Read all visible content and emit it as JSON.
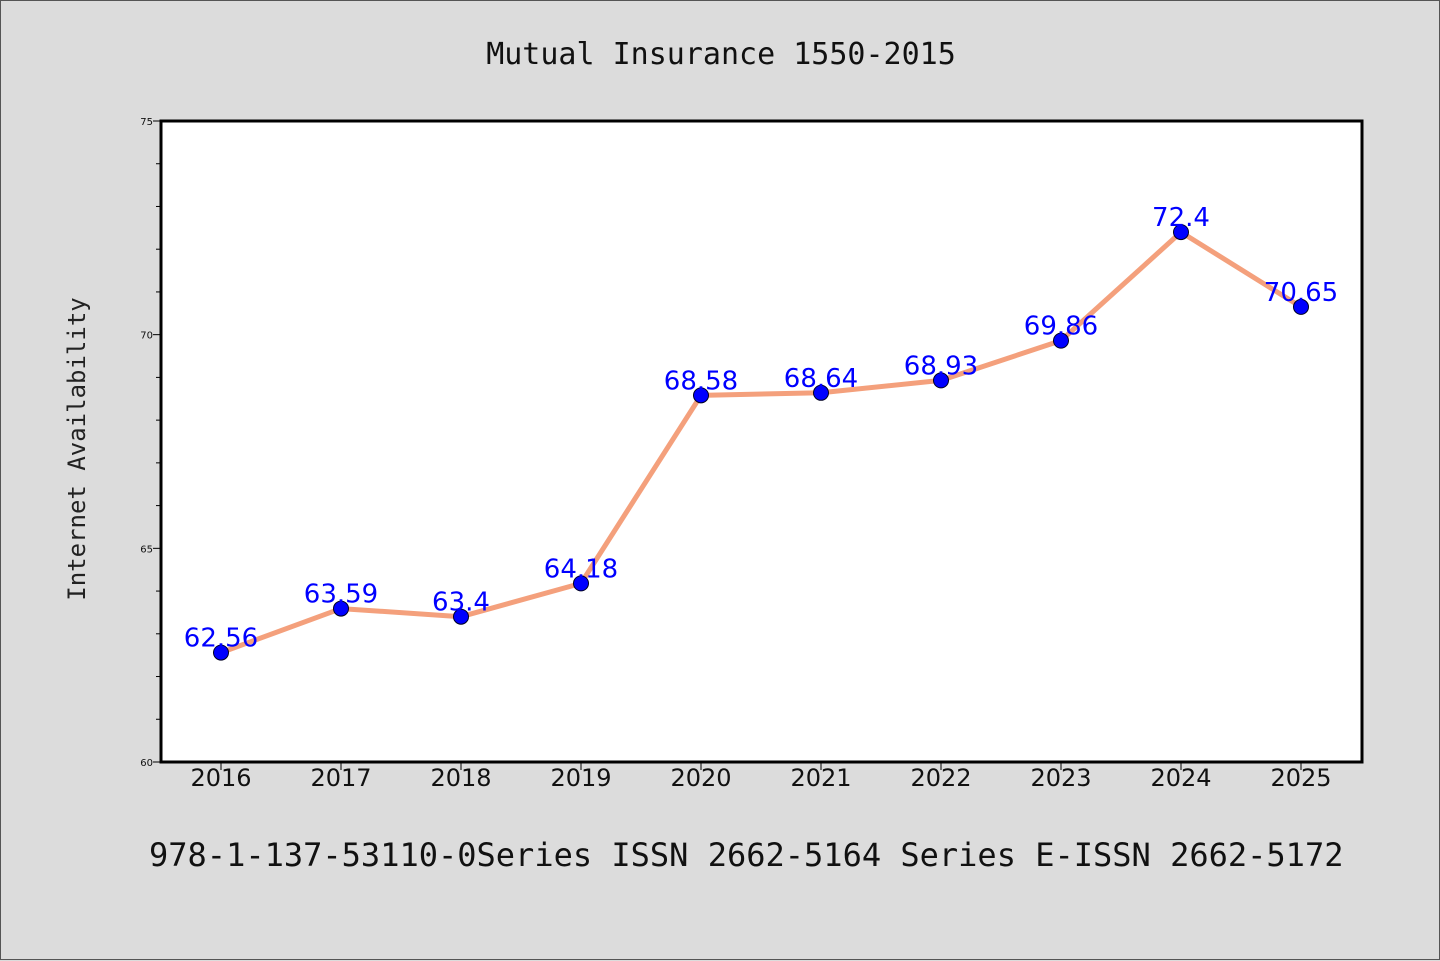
{
  "chart_data": {
    "type": "line",
    "title": "Mutual Insurance 1550-2015",
    "xlabel": "",
    "ylabel": "Internet Availability",
    "footer": "978-1-137-53110-0Series ISSN 2662-5164 Series E-ISSN 2662-5172",
    "x": [
      "2016",
      "2017",
      "2018",
      "2019",
      "2020",
      "2021",
      "2022",
      "2023",
      "2024",
      "2025"
    ],
    "series": [
      {
        "values": [
          62.56,
          63.59,
          63.4,
          64.18,
          68.58,
          68.64,
          68.93,
          69.86,
          72.4,
          70.65
        ],
        "data_labels": [
          "62.56",
          "63.59",
          "63.4",
          "64.18",
          "68.58",
          "68.64",
          "68.93",
          "69.86",
          "72.4",
          "70.65"
        ],
        "line_color": "#f4a07c",
        "marker_color": "#0000ff",
        "label_color": "#0000ff"
      }
    ],
    "ylim": [
      60,
      75
    ],
    "yticks": [
      "60",
      "65",
      "70",
      "75"
    ],
    "grid": false,
    "legend": "none"
  },
  "colors": {
    "background": "#dcdcdc",
    "plot_background": "#ffffff",
    "axis": "#000000"
  }
}
